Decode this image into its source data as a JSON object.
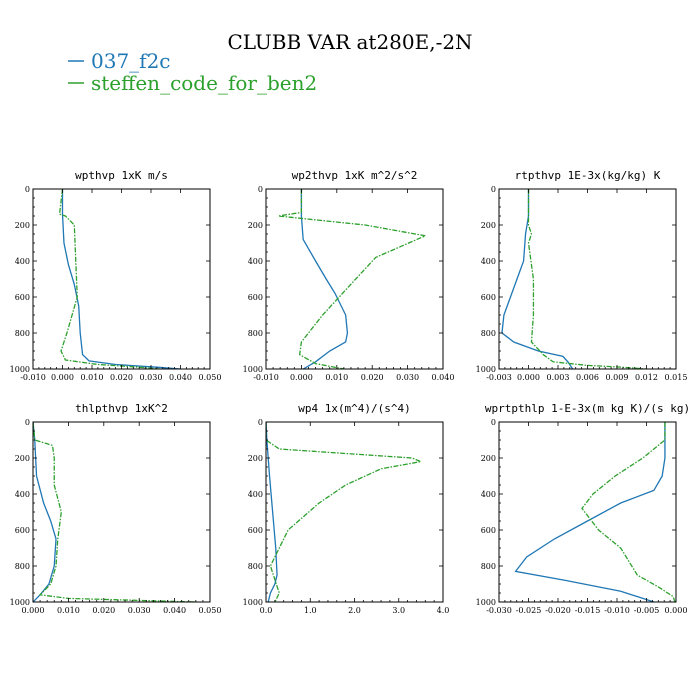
{
  "figure": {
    "title": "CLUBB VAR at280E,-2N",
    "legend": [
      {
        "name": "037_f2c",
        "color": "#1f77b4",
        "dash": "solid"
      },
      {
        "name": "steffen_code_for_ben2",
        "color": "#2ca02c",
        "dash": "dashdot"
      }
    ]
  },
  "chart_data": [
    {
      "type": "line",
      "title": "wpthvp  1xK m/s",
      "xlim": [
        -0.01,
        0.05
      ],
      "ylim": [
        1000,
        0
      ],
      "xticks": [
        "-0.010",
        "0.000",
        "0.010",
        "0.020",
        "0.030",
        "0.040",
        "0.050"
      ],
      "yticks": [
        "0",
        "200",
        "400",
        "600",
        "800",
        "1000"
      ],
      "series": [
        {
          "name": "037_f2c",
          "color": "#1f77b4",
          "y": [
            0,
            140,
            300,
            420,
            530,
            650,
            800,
            920,
            955,
            975,
            990,
            1000
          ],
          "x": [
            0.0,
            0.0,
            0.0005,
            0.002,
            0.004,
            0.0055,
            0.006,
            0.0068,
            0.009,
            0.018,
            0.032,
            0.04
          ]
        },
        {
          "name": "steffen_code_for_ben2",
          "color": "#2ca02c",
          "y": [
            0,
            140,
            150,
            200,
            400,
            600,
            800,
            900,
            950,
            975,
            990,
            1000
          ],
          "x": [
            0.0,
            -0.001,
            0.001,
            0.004,
            0.0045,
            0.005,
            0.0015,
            -0.0005,
            0.001,
            0.012,
            0.026,
            0.033
          ]
        }
      ]
    },
    {
      "type": "line",
      "title": "wp2thvp  1xK m^2/s^2",
      "xlim": [
        -0.01,
        0.04
      ],
      "ylim": [
        1000,
        0
      ],
      "xticks": [
        "-0.010",
        "0.000",
        "0.010",
        "0.020",
        "0.030",
        "0.040"
      ],
      "yticks": [
        "0",
        "200",
        "400",
        "600",
        "800",
        "1000"
      ],
      "series": [
        {
          "name": "037_f2c",
          "color": "#1f77b4",
          "y": [
            0,
            150,
            280,
            400,
            500,
            580,
            700,
            800,
            850,
            900,
            960,
            1000
          ],
          "x": [
            0.0,
            0.0,
            0.0005,
            0.004,
            0.007,
            0.0095,
            0.0125,
            0.013,
            0.0125,
            0.008,
            0.004,
            0.0005
          ]
        },
        {
          "name": "steffen_code_for_ben2",
          "color": "#2ca02c",
          "y": [
            0,
            130,
            150,
            200,
            260,
            380,
            550,
            700,
            850,
            920,
            970,
            1000
          ],
          "x": [
            0.0,
            0.0,
            -0.0065,
            0.018,
            0.035,
            0.021,
            0.013,
            0.006,
            0.0,
            -0.0005,
            0.004,
            0.012
          ]
        }
      ]
    },
    {
      "type": "line",
      "title": "rtpthvp  1E-3x(kg/kg) K",
      "xlim": [
        -0.003,
        0.015
      ],
      "ylim": [
        1000,
        0
      ],
      "xticks": [
        "-0.003",
        "0.000",
        "0.003",
        "0.006",
        "0.009",
        "0.012",
        "0.015"
      ],
      "yticks": [
        "0",
        "200",
        "400",
        "600",
        "800",
        "1000"
      ],
      "series": [
        {
          "name": "037_f2c",
          "color": "#1f77b4",
          "y": [
            0,
            150,
            250,
            400,
            550,
            700,
            800,
            850,
            900,
            930,
            960,
            1000
          ],
          "x": [
            0.0,
            0.0,
            -0.0003,
            -0.0005,
            -0.0015,
            -0.0025,
            -0.0027,
            -0.0015,
            0.001,
            0.0035,
            0.004,
            0.0045
          ]
        },
        {
          "name": "steffen_code_for_ben2",
          "color": "#2ca02c",
          "y": [
            0,
            200,
            250,
            300,
            500,
            700,
            850,
            920,
            960,
            980,
            990,
            1000
          ],
          "x": [
            0.0,
            0.0,
            0.0003,
            0.0,
            0.0005,
            0.0005,
            0.0003,
            0.0015,
            0.0025,
            0.006,
            0.0095,
            0.012
          ]
        }
      ]
    },
    {
      "type": "line",
      "title": "thlpthvp  1xK^2",
      "xlim": [
        0.0,
        0.05
      ],
      "ylim": [
        1000,
        0
      ],
      "xticks": [
        "0.000",
        "0.010",
        "0.020",
        "0.030",
        "0.040",
        "0.050"
      ],
      "yticks": [
        "0",
        "200",
        "400",
        "600",
        "800",
        "1000"
      ],
      "series": [
        {
          "name": "037_f2c",
          "color": "#1f77b4",
          "y": [
            0,
            100,
            300,
            450,
            550,
            650,
            800,
            900,
            960,
            980,
            1000
          ],
          "x": [
            0.0,
            0.0005,
            0.001,
            0.003,
            0.005,
            0.0065,
            0.006,
            0.0045,
            0.002,
            0.001,
            0.0
          ]
        },
        {
          "name": "steffen_code_for_ben2",
          "color": "#2ca02c",
          "y": [
            0,
            100,
            130,
            200,
            350,
            500,
            650,
            800,
            900,
            960,
            980,
            1000
          ],
          "x": [
            0.0,
            0.0005,
            0.0055,
            0.006,
            0.006,
            0.008,
            0.007,
            0.0065,
            0.005,
            0.002,
            0.01,
            0.046
          ]
        }
      ]
    },
    {
      "type": "line",
      "title": "wp4  1x(m^4)/(s^4)",
      "xlim": [
        0.0,
        4.0
      ],
      "ylim": [
        1000,
        0
      ],
      "xticks": [
        "0.0",
        "1.0",
        "2.0",
        "3.0",
        "4.0"
      ],
      "yticks": [
        "0",
        "200",
        "400",
        "600",
        "800",
        "1000"
      ],
      "series": [
        {
          "name": "037_f2c",
          "color": "#1f77b4",
          "y": [
            0,
            100,
            300,
            500,
            700,
            850,
            900,
            950,
            1000
          ],
          "x": [
            0.0,
            0.02,
            0.08,
            0.15,
            0.22,
            0.25,
            0.2,
            0.1,
            0.05
          ]
        },
        {
          "name": "steffen_code_for_ben2",
          "color": "#2ca02c",
          "y": [
            0,
            100,
            150,
            200,
            220,
            260,
            350,
            450,
            600,
            800,
            950,
            1000
          ],
          "x": [
            0.0,
            0.0,
            0.3,
            3.3,
            3.5,
            2.6,
            1.8,
            1.2,
            0.5,
            0.1,
            0.3,
            0.2
          ]
        }
      ]
    },
    {
      "type": "line",
      "title": "wprtpthlp  1-E-3x(m kg K)/(s kg)",
      "xlim": [
        -0.03,
        0.002
      ],
      "ylim": [
        1000,
        0
      ],
      "xticks": [
        "-0.030",
        "-0.025",
        "-0.020",
        "-0.015",
        "-0.010",
        "-0.005",
        "0.000"
      ],
      "yticks": [
        "0",
        "200",
        "400",
        "600",
        "800",
        "1000"
      ],
      "series": [
        {
          "name": "037_f2c",
          "color": "#1f77b4",
          "y": [
            0,
            200,
            300,
            380,
            450,
            550,
            650,
            750,
            830,
            880,
            940,
            1000
          ],
          "x": [
            0.0,
            0.0,
            -0.0005,
            -0.002,
            -0.008,
            -0.014,
            -0.02,
            -0.025,
            -0.027,
            -0.018,
            -0.008,
            -0.002
          ]
        },
        {
          "name": "steffen_code_for_ben2",
          "color": "#2ca02c",
          "y": [
            0,
            100,
            200,
            300,
            400,
            480,
            600,
            700,
            850,
            920,
            970,
            1000
          ],
          "x": [
            0.0,
            0.0,
            -0.004,
            -0.009,
            -0.013,
            -0.015,
            -0.012,
            -0.008,
            -0.005,
            -0.001,
            0.0015,
            0.0018
          ]
        }
      ]
    }
  ]
}
